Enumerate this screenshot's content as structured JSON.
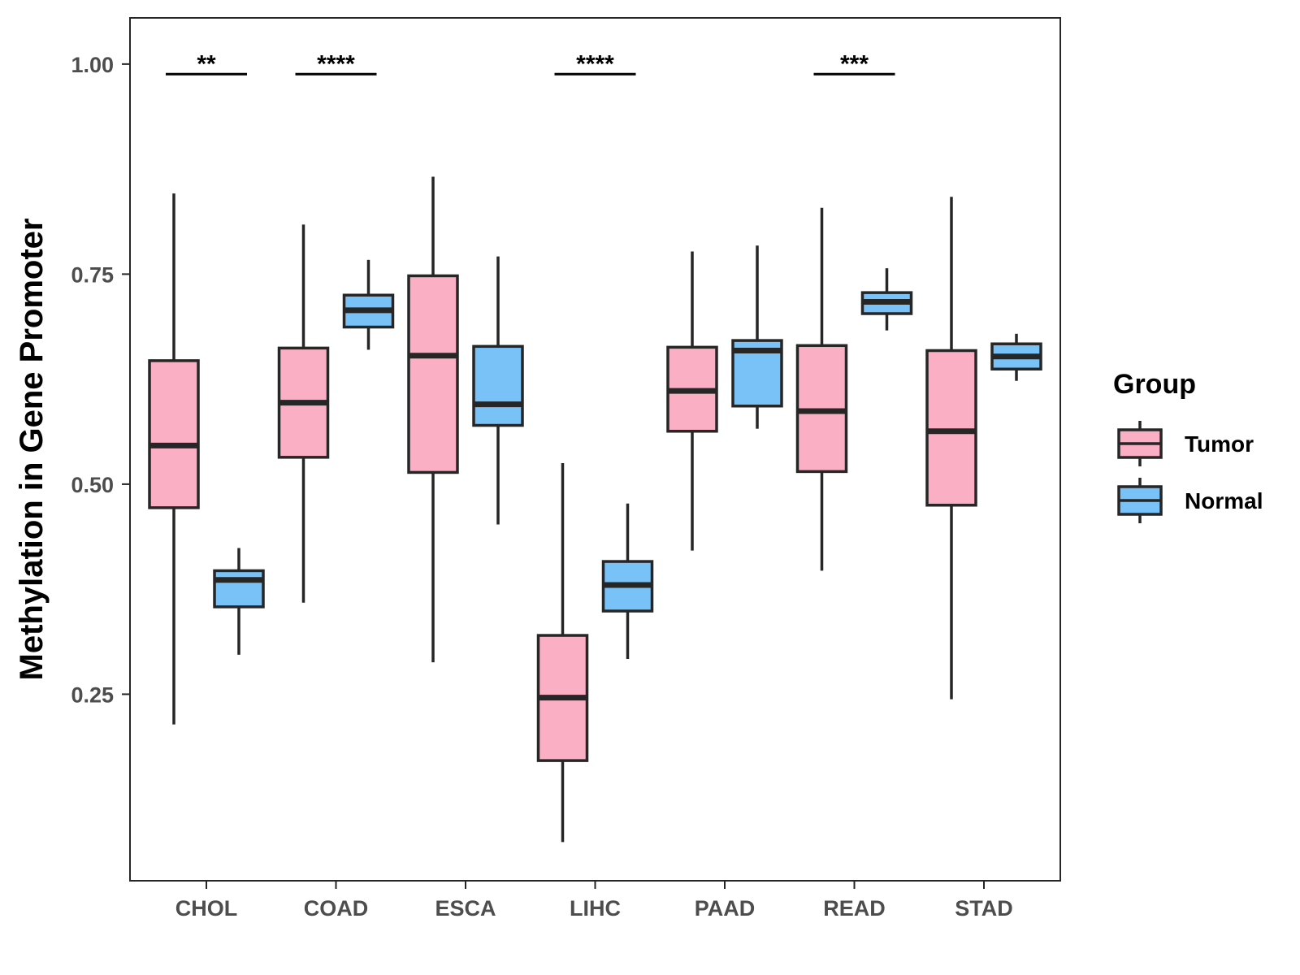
{
  "chart_data": {
    "type": "boxplot",
    "title": "",
    "xlabel": "",
    "ylabel": "Methylation in Gene Promoter",
    "ylim": [
      0.028,
      1.055
    ],
    "yticks": [
      0.25,
      0.5,
      0.75,
      1.0
    ],
    "ytick_labels": [
      "0.25",
      "0.50",
      "0.75",
      "1.00"
    ],
    "categories": [
      "CHOL",
      "COAD",
      "ESCA",
      "LIHC",
      "PAAD",
      "READ",
      "STAD"
    ],
    "legend": {
      "title": "Group",
      "position": "right",
      "entries": [
        {
          "name": "Tumor",
          "color": "#FBAFC4"
        },
        {
          "name": "Normal",
          "color": "#78C2F7"
        }
      ]
    },
    "colors": {
      "tumor": "#FBAFC4",
      "normal": "#78C2F7",
      "line": "#262626"
    },
    "series": [
      {
        "name": "Tumor",
        "boxes": [
          {
            "category": "CHOL",
            "whisker_low": 0.214,
            "q1": 0.472,
            "median": 0.546,
            "q3": 0.647,
            "whisker_high": 0.846
          },
          {
            "category": "COAD",
            "whisker_low": 0.359,
            "q1": 0.532,
            "median": 0.597,
            "q3": 0.662,
            "whisker_high": 0.809
          },
          {
            "category": "ESCA",
            "whisker_low": 0.288,
            "q1": 0.514,
            "median": 0.653,
            "q3": 0.748,
            "whisker_high": 0.866
          },
          {
            "category": "LIHC",
            "whisker_low": 0.074,
            "q1": 0.171,
            "median": 0.246,
            "q3": 0.32,
            "whisker_high": 0.525
          },
          {
            "category": "PAAD",
            "whisker_low": 0.421,
            "q1": 0.563,
            "median": 0.611,
            "q3": 0.663,
            "whisker_high": 0.777
          },
          {
            "category": "READ",
            "whisker_low": 0.397,
            "q1": 0.515,
            "median": 0.587,
            "q3": 0.665,
            "whisker_high": 0.829
          },
          {
            "category": "STAD",
            "whisker_low": 0.244,
            "q1": 0.475,
            "median": 0.563,
            "q3": 0.659,
            "whisker_high": 0.842
          }
        ]
      },
      {
        "name": "Normal",
        "boxes": [
          {
            "category": "CHOL",
            "whisker_low": 0.297,
            "q1": 0.354,
            "median": 0.386,
            "q3": 0.397,
            "whisker_high": 0.424
          },
          {
            "category": "COAD",
            "whisker_low": 0.66,
            "q1": 0.687,
            "median": 0.707,
            "q3": 0.725,
            "whisker_high": 0.767
          },
          {
            "category": "ESCA",
            "whisker_low": 0.452,
            "q1": 0.57,
            "median": 0.595,
            "q3": 0.664,
            "whisker_high": 0.771
          },
          {
            "category": "LIHC",
            "whisker_low": 0.292,
            "q1": 0.349,
            "median": 0.38,
            "q3": 0.408,
            "whisker_high": 0.477
          },
          {
            "category": "PAAD",
            "whisker_low": 0.566,
            "q1": 0.593,
            "median": 0.659,
            "q3": 0.671,
            "whisker_high": 0.784
          },
          {
            "category": "READ",
            "whisker_low": 0.683,
            "q1": 0.703,
            "median": 0.717,
            "q3": 0.728,
            "whisker_high": 0.757
          },
          {
            "category": "STAD",
            "whisker_low": 0.623,
            "q1": 0.637,
            "median": 0.652,
            "q3": 0.667,
            "whisker_high": 0.679
          }
        ]
      }
    ],
    "annotations": [
      {
        "category": "CHOL",
        "label": "**",
        "y": 0.988
      },
      {
        "category": "COAD",
        "label": "****",
        "y": 0.988
      },
      {
        "category": "LIHC",
        "label": "****",
        "y": 0.988
      },
      {
        "category": "READ",
        "label": "***",
        "y": 0.988
      }
    ]
  }
}
